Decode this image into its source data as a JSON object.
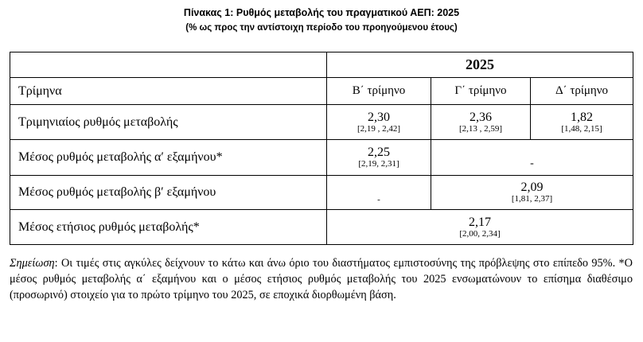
{
  "title": "Πίνακας 1: Ρυθμός μεταβολής του πραγματικού ΑΕΠ: 2025",
  "subtitle": "(% ως προς την αντίστοιχη περίοδο του προηγούμενου έτους)",
  "table": {
    "year": "2025",
    "header_label": "Τρίμηνα",
    "quarters": [
      "Β΄ τρίμηνο",
      "Γ΄ τρίμηνο",
      "Δ΄ τρίμηνο"
    ],
    "quarterly": {
      "label": "Τριμηνιαίος ρυθμός μεταβολής",
      "values": [
        {
          "v": "2,30",
          "ci": "[2,19 , 2,42]"
        },
        {
          "v": "2,36",
          "ci": "[2,13 , 2,59]"
        },
        {
          "v": "1,82",
          "ci": "[1,48, 2,15]"
        }
      ]
    },
    "h1": {
      "label": "Μέσος ρυθμός μεταβολής α′ εξαμήνου*",
      "v": "2,25",
      "ci": "[2,19, 2,31]",
      "empty": "-"
    },
    "h2": {
      "label": "Μέσος ρυθμός μεταβολής β′ εξαμήνου",
      "empty": "-",
      "v": "2,09",
      "ci": "[1,81, 2,37]"
    },
    "annual": {
      "label": "Μέσος ετήσιος ρυθμός μεταβολής*",
      "v": "2,17",
      "ci": "[2,00, 2,34]"
    }
  },
  "note": {
    "lead": "Σημείωση",
    "text": ": Οι τιμές στις αγκύλες δείχνουν το κάτω και άνω όριο του διαστήματος εμπιστοσύνης της πρόβλεψης στο επίπεδο 95%. *Ο μέσος ρυθμός μεταβολής α΄ εξαμήνου και ο μέσος ετήσιος ρυθμός μεταβολής του 2025 ενσωματώνουν το επίσημα διαθέσιμο (προσωρινό) στοιχείο για το πρώτο τρίμηνο του 2025, σε εποχικά διορθωμένη βάση."
  }
}
